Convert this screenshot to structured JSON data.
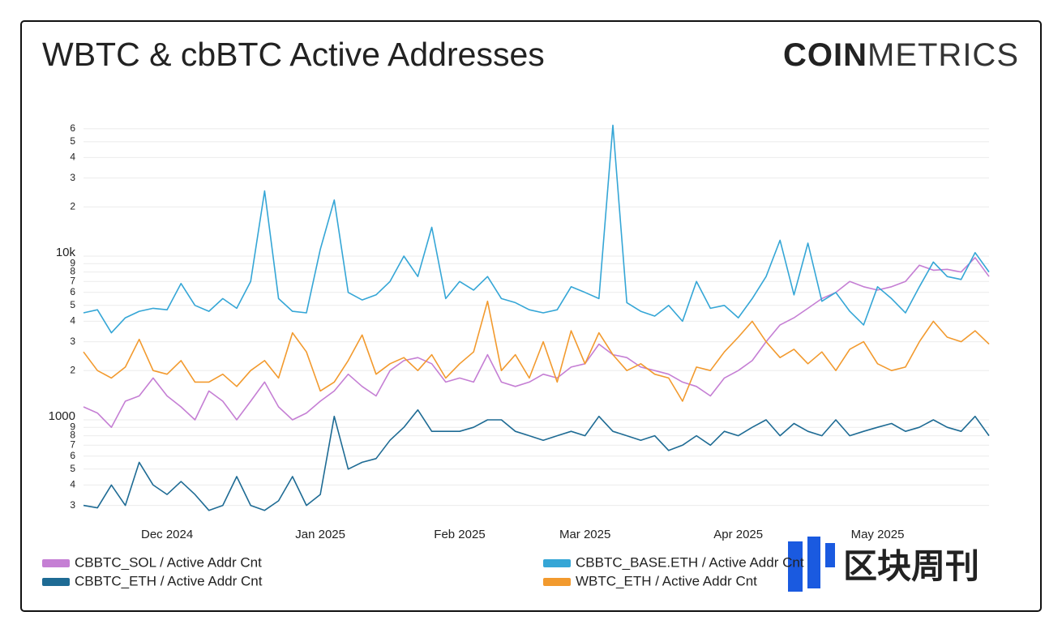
{
  "chart_data": {
    "type": "line",
    "title": "WBTC & cbBTC Active Addresses",
    "logo": {
      "bold": "COIN",
      "light": "METRICS"
    },
    "watermark": "区块周刊",
    "log_scale": true,
    "grid": true,
    "categories": [
      null,
      null,
      null,
      null,
      null,
      null,
      "Dec 2024",
      null,
      null,
      null,
      null,
      null,
      null,
      null,
      null,
      null,
      null,
      "Jan 2025",
      null,
      null,
      null,
      null,
      null,
      null,
      null,
      null,
      null,
      "Feb 2025",
      null,
      null,
      null,
      null,
      null,
      null,
      null,
      null,
      "Mar 2025",
      null,
      null,
      null,
      null,
      null,
      null,
      null,
      null,
      null,
      null,
      "Apr 2025",
      null,
      null,
      null,
      null,
      null,
      null,
      null,
      null,
      null,
      "May 2025",
      null,
      null,
      null,
      null,
      null,
      null,
      null,
      null
    ],
    "ylim": [
      250,
      70000
    ],
    "yticks": [
      {
        "value": 300,
        "label": "3"
      },
      {
        "value": 400,
        "label": "4"
      },
      {
        "value": 500,
        "label": "5"
      },
      {
        "value": 600,
        "label": "6"
      },
      {
        "value": 700,
        "label": "7"
      },
      {
        "value": 800,
        "label": "8"
      },
      {
        "value": 900,
        "label": "9"
      },
      1000,
      {
        "value": 2000,
        "label": "2"
      },
      {
        "value": 3000,
        "label": "3"
      },
      {
        "value": 4000,
        "label": "4"
      },
      {
        "value": 5000,
        "label": "5"
      },
      {
        "value": 6000,
        "label": "6"
      },
      {
        "value": 7000,
        "label": "7"
      },
      {
        "value": 8000,
        "label": "8"
      },
      {
        "value": 9000,
        "label": "9"
      },
      {
        "value": 10000,
        "label": "10k"
      },
      {
        "value": 20000,
        "label": "2"
      },
      {
        "value": 30000,
        "label": "3"
      },
      {
        "value": 40000,
        "label": "4"
      },
      {
        "value": 50000,
        "label": "5"
      },
      {
        "value": 60000,
        "label": "6"
      }
    ],
    "series": [
      {
        "name": "CBBTC_SOL / Active Addr Cnt",
        "color": "#c57fd4",
        "values": [
          1200,
          1100,
          900,
          1300,
          1400,
          1800,
          1400,
          1200,
          1000,
          1500,
          1300,
          1000,
          1300,
          1700,
          1200,
          1000,
          1100,
          1300,
          1500,
          1900,
          1600,
          1400,
          2000,
          2300,
          2400,
          2200,
          1700,
          1800,
          1700,
          2500,
          1700,
          1600,
          1700,
          1900,
          1800,
          2100,
          2200,
          2900,
          2500,
          2400,
          2100,
          2000,
          1900,
          1700,
          1600,
          1400,
          1800,
          2000,
          2300,
          3000,
          3800,
          4200,
          4800,
          5500,
          6000,
          7000,
          6500,
          6200,
          6500,
          7000,
          8800,
          8200,
          8300,
          8000,
          9800,
          7500
        ]
      },
      {
        "name": "CBBTC_BASE.ETH / Active Addr Cnt",
        "color": "#35a6d6",
        "values": [
          4500,
          4700,
          3400,
          4200,
          4600,
          4800,
          4700,
          6800,
          5000,
          4600,
          5500,
          4800,
          7000,
          25000,
          5500,
          4600,
          4500,
          11000,
          22000,
          6000,
          5400,
          5800,
          7000,
          10000,
          7500,
          15000,
          5500,
          7000,
          6200,
          7500,
          5500,
          5200,
          4700,
          4500,
          4700,
          6500,
          6000,
          5500,
          63000,
          5200,
          4600,
          4300,
          5000,
          4000,
          7000,
          4800,
          5000,
          4200,
          5500,
          7500,
          12500,
          5800,
          12000,
          5300,
          6000,
          4600,
          3800,
          6500,
          5500,
          4500,
          6500,
          9200,
          7500,
          7200,
          10500,
          8000
        ]
      },
      {
        "name": "CBBTC_ETH / Active Addr Cnt",
        "color": "#1e6b94",
        "values": [
          300,
          290,
          400,
          300,
          550,
          400,
          350,
          420,
          350,
          280,
          300,
          450,
          300,
          280,
          320,
          450,
          300,
          350,
          1050,
          500,
          550,
          580,
          750,
          900,
          1150,
          850,
          850,
          850,
          900,
          1000,
          1000,
          850,
          800,
          750,
          800,
          850,
          800,
          1050,
          850,
          800,
          750,
          800,
          650,
          700,
          800,
          700,
          850,
          800,
          900,
          1000,
          800,
          950,
          850,
          800,
          1000,
          800,
          850,
          900,
          950,
          850,
          900,
          1000,
          900,
          850,
          1050,
          800
        ]
      },
      {
        "name": "WBTC_ETH / Active Addr Cnt",
        "color": "#f29a2e",
        "values": [
          2600,
          2000,
          1800,
          2100,
          3100,
          2000,
          1900,
          2300,
          1700,
          1700,
          1900,
          1600,
          2000,
          2300,
          1800,
          3400,
          2600,
          1500,
          1700,
          2300,
          3300,
          1900,
          2200,
          2400,
          2000,
          2500,
          1800,
          2200,
          2600,
          5300,
          2000,
          2500,
          1800,
          3000,
          1700,
          3500,
          2200,
          3400,
          2500,
          2000,
          2200,
          1900,
          1800,
          1300,
          2100,
          2000,
          2600,
          3200,
          4000,
          3000,
          2400,
          2700,
          2200,
          2600,
          2000,
          2700,
          3000,
          2200,
          2000,
          2100,
          3000,
          4000,
          3200,
          3000,
          3500,
          2900
        ]
      }
    ]
  }
}
